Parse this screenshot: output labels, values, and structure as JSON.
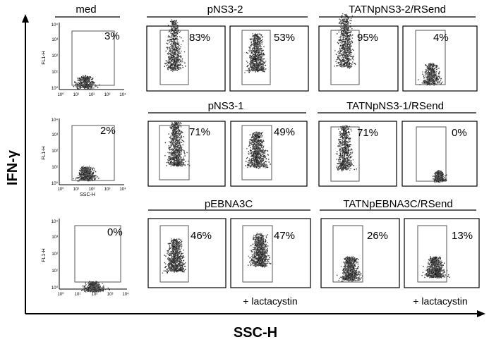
{
  "figure": {
    "y_axis_label": "IFN-γ",
    "x_axis_label": "SSC-H",
    "small_axis": {
      "y_label": "FL1-H",
      "x_label": "SSC-H",
      "y_ticks": [
        "10⁰",
        "10¹",
        "10²",
        "10³",
        "10⁴"
      ],
      "x_ticks": [
        "10⁰",
        "10¹",
        "10²",
        "10³",
        "10⁴"
      ]
    },
    "rows": [
      {
        "med_label": "med",
        "group_a_label": "pNS3-2",
        "group_b_label": "TATNpNS3-2/RSend",
        "percentages": [
          "3%",
          "83%",
          "53%",
          "95%",
          "4%"
        ],
        "annotations": [
          "",
          "",
          "",
          "",
          ""
        ]
      },
      {
        "med_label": "",
        "group_a_label": "pNS3-1",
        "group_b_label": "TATNpNS3-1/RSend",
        "percentages": [
          "2%",
          "71%",
          "49%",
          "71%",
          "0%"
        ],
        "annotations": [
          "",
          "",
          "",
          "",
          ""
        ]
      },
      {
        "med_label": "",
        "group_a_label": "pEBNA3C",
        "group_b_label": "TATNpEBNA3C/RSend",
        "percentages": [
          "0%",
          "46%",
          "47%",
          "26%",
          "13%"
        ],
        "annotations": [
          "",
          "",
          "+ lactacystin",
          "",
          "+ lactacystin"
        ]
      }
    ]
  }
}
